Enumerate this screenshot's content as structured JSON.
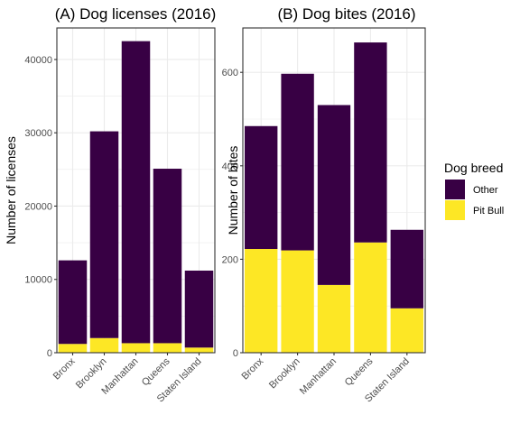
{
  "chart_data": [
    {
      "type": "bar",
      "stacked": true,
      "title": "(A) Dog licenses (2016)",
      "ylabel": "Number of licenses",
      "xlabel": "",
      "categories": [
        "Bronx",
        "Brooklyn",
        "Manhattan",
        "Queens",
        "Staten Island"
      ],
      "series": [
        {
          "name": "Pit Bull",
          "values": [
            1200,
            2000,
            1300,
            1300,
            700
          ]
        },
        {
          "name": "Other",
          "values": [
            11400,
            28200,
            41200,
            23800,
            10500
          ]
        }
      ],
      "ylim": [
        0,
        44300
      ],
      "yticks": [
        0,
        10000,
        20000,
        30000,
        40000
      ],
      "ytick_labels": [
        "0",
        "10000",
        "20000",
        "30000",
        "40000"
      ],
      "grid": true
    },
    {
      "type": "bar",
      "stacked": true,
      "title": "(B) Dog bites (2016)",
      "ylabel": "Number of bites",
      "xlabel": "",
      "categories": [
        "Bronx",
        "Brooklyn",
        "Manhattan",
        "Queens",
        "Staten Island"
      ],
      "series": [
        {
          "name": "Pit Bull",
          "values": [
            222,
            219,
            145,
            236,
            95
          ]
        },
        {
          "name": "Other",
          "values": [
            263,
            378,
            385,
            428,
            168
          ]
        }
      ],
      "ylim": [
        0,
        695
      ],
      "yticks": [
        0,
        200,
        400,
        600
      ],
      "ytick_labels": [
        "0",
        "200",
        "400",
        "600"
      ],
      "grid": true
    }
  ],
  "legend": {
    "title": "Dog breed",
    "placement": "right",
    "items": [
      {
        "label": "Other",
        "color": "#380044"
      },
      {
        "label": "Pit Bull",
        "color": "#fde725"
      }
    ]
  },
  "colors": {
    "Other": "#380044",
    "Pit Bull": "#fde725",
    "grid": "#ebebeb",
    "panel_border": "#333333"
  }
}
